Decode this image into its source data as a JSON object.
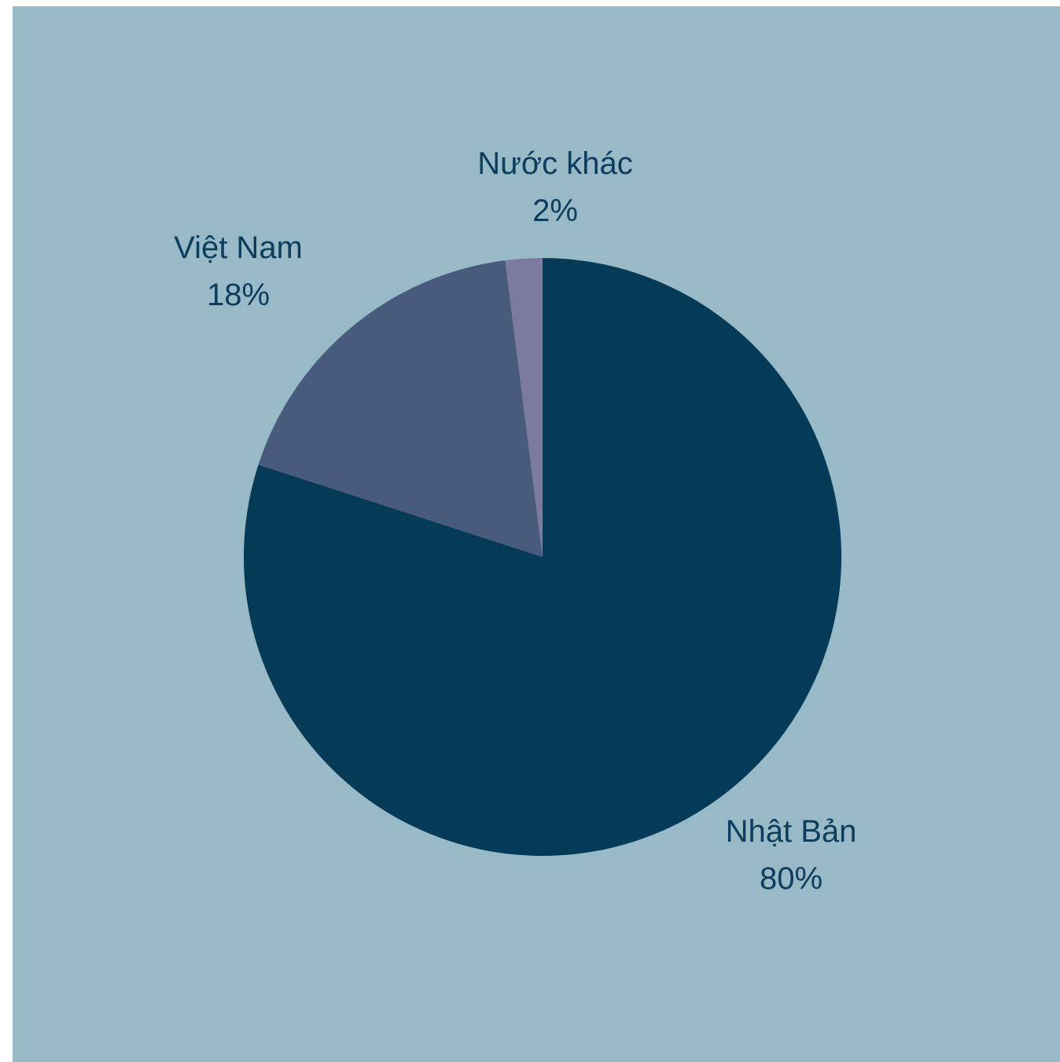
{
  "chart_data": {
    "type": "pie",
    "title": "",
    "start_angle_deg": 0,
    "direction": "clockwise",
    "slices": [
      {
        "label": "Nhật Bản",
        "value": 80,
        "value_label": "80%",
        "color": "#053b56"
      },
      {
        "label": "Việt Nam",
        "value": 18,
        "value_label": "18%",
        "color": "#485b7c"
      },
      {
        "label": "Nước khác",
        "value": 2,
        "value_label": "2%",
        "color": "#7d7aa0"
      }
    ],
    "background_color": "#98bac6",
    "label_color": "#0c3d5c",
    "legend": "none"
  }
}
